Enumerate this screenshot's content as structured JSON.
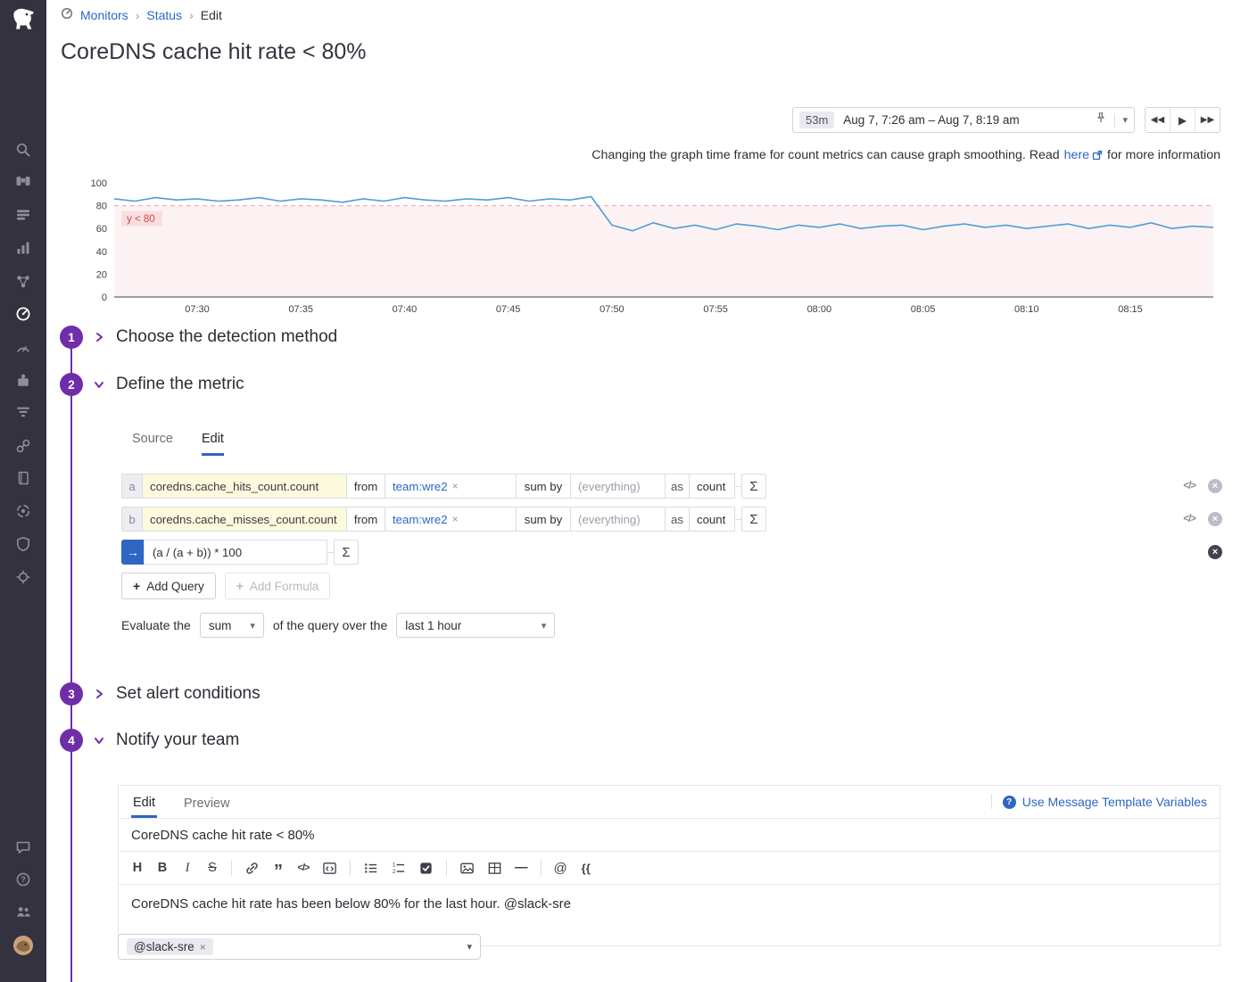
{
  "sidebar": {
    "icons": [
      "search",
      "watchdog",
      "dashboards",
      "metrics",
      "infrastructure",
      "monitors",
      "apm",
      "integrations",
      "logs",
      "synthetics",
      "notebooks",
      "ci-cd",
      "security",
      "serverless",
      "support-chat",
      "help",
      "organization",
      "user-avatar"
    ],
    "active_icon": "monitors"
  },
  "breadcrumb": {
    "items": [
      "Monitors",
      "Status",
      "Edit"
    ]
  },
  "page_title": "CoreDNS cache hit rate < 80%",
  "time_controls": {
    "duration": "53m",
    "range": "Aug 7, 7:26 am – Aug 7, 8:19 am"
  },
  "graph_note": {
    "before": "Changing the graph time frame for count metrics can cause graph smoothing. Read",
    "link": "here",
    "after": "for more information"
  },
  "chart_data": {
    "type": "line",
    "title": "",
    "ylim": [
      0,
      100
    ],
    "y_ticks": [
      0,
      20,
      40,
      60,
      80,
      100
    ],
    "x_total_minutes": 53,
    "x_ticks": [
      {
        "label": "07:30",
        "minute": 4
      },
      {
        "label": "07:35",
        "minute": 9
      },
      {
        "label": "07:40",
        "minute": 14
      },
      {
        "label": "07:45",
        "minute": 19
      },
      {
        "label": "07:50",
        "minute": 24
      },
      {
        "label": "07:55",
        "minute": 29
      },
      {
        "label": "08:00",
        "minute": 34
      },
      {
        "label": "08:05",
        "minute": 39
      },
      {
        "label": "08:10",
        "minute": 44
      },
      {
        "label": "08:15",
        "minute": 49
      }
    ],
    "threshold": {
      "label": "y < 80",
      "value": 80,
      "direction": "below"
    },
    "series": [
      {
        "name": "(a / (a + b)) * 100",
        "color": "#4f9ed7",
        "values": [
          86,
          84,
          87,
          85,
          86,
          84,
          85,
          87,
          84,
          86,
          85,
          83,
          86,
          84,
          87,
          85,
          84,
          86,
          85,
          87,
          84,
          86,
          85,
          88,
          63,
          58,
          65,
          60,
          63,
          59,
          64,
          62,
          59,
          63,
          61,
          64,
          60,
          62,
          63,
          59,
          62,
          64,
          61,
          63,
          60,
          62,
          64,
          60,
          63,
          61,
          65,
          60,
          62,
          61
        ]
      }
    ],
    "grid": "off",
    "legend": "none"
  },
  "steps": [
    {
      "number": "1",
      "title": "Choose the detection method",
      "expanded": false
    },
    {
      "number": "2",
      "title": "Define the metric",
      "expanded": true
    },
    {
      "number": "3",
      "title": "Set alert conditions",
      "expanded": false
    },
    {
      "number": "4",
      "title": "Notify your team",
      "expanded": true
    }
  ],
  "metric_editor": {
    "tabs": {
      "source": "Source",
      "edit": "Edit"
    },
    "active_tab": "Edit",
    "labels": {
      "from": "from",
      "sum_by": "sum by",
      "as": "as"
    },
    "queries": [
      {
        "letter": "a",
        "metric": "coredns.cache_hits_count.count",
        "filter": "team:wre2",
        "group_placeholder": "(everything)",
        "aggregator": "count"
      },
      {
        "letter": "b",
        "metric": "coredns.cache_misses_count.count",
        "filter": "team:wre2",
        "group_placeholder": "(everything)",
        "aggregator": "count"
      }
    ],
    "formula": {
      "expression": "(a / (a + b)) * 100"
    },
    "buttons": {
      "add_query": "Add Query",
      "add_formula": "Add Formula"
    },
    "evaluate": {
      "before": "Evaluate the",
      "aggregation": "sum",
      "middle": "of the query over the",
      "window": "last 1 hour"
    }
  },
  "notify": {
    "tabs": {
      "edit": "Edit",
      "preview": "Preview"
    },
    "active_tab": "Edit",
    "template_vars_label": "Use Message Template Variables",
    "title_value": "CoreDNS cache hit rate < 80%",
    "message_value": "CoreDNS cache hit rate has been below 80% for the last hour. @slack-sre",
    "recipient": "@slack-sre",
    "toolbar": [
      "heading",
      "bold",
      "italic",
      "strikethrough",
      "link",
      "quote",
      "inline-code",
      "code-block",
      "bullet-list",
      "numbered-list",
      "task-list",
      "image",
      "table",
      "horizontal-rule",
      "mention",
      "template-braces"
    ]
  }
}
